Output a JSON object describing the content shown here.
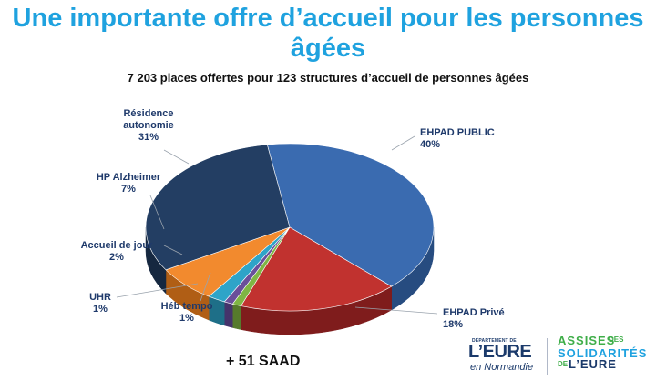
{
  "page": {
    "title": "Une importante offre d’accueil pour les personnes âgées",
    "footer_text": "+ 51 SAAD",
    "logo_left": {
      "small": "DÉPARTEMENT DE",
      "big": "L’EURE",
      "sub": "en Normandie"
    },
    "logo_right": {
      "line1": "ASSISES",
      "des": "DES",
      "line2": "SOLIDARITÉS",
      "de": "DE",
      "line3": "L’EURE"
    }
  },
  "chart_data": {
    "type": "pie",
    "title": "7 203 places offertes pour 123 structures d’accueil de personnes âgées",
    "slices": [
      {
        "name": "EHPAD PUBLIC",
        "value": 40,
        "label": "40%",
        "color": "#3a6bb0",
        "side": "#274c80"
      },
      {
        "name": "EHPAD Privé",
        "value": 18,
        "label": "18%",
        "color": "#c1322f",
        "side": "#7f1c1c"
      },
      {
        "name": "Héb tempo",
        "value": 1,
        "label": "1%",
        "color": "#7fb544",
        "side": "#567a2c"
      },
      {
        "name": "UHR",
        "value": 1,
        "label": "1%",
        "color": "#6a4f9a",
        "side": "#45336b"
      },
      {
        "name": "Accueil de jour",
        "value": 2,
        "label": "2%",
        "color": "#2ea4c8",
        "side": "#1e6f88"
      },
      {
        "name": "HP Alzheimer",
        "value": 7,
        "label": "7%",
        "color": "#f28a2e",
        "side": "#b05e15"
      },
      {
        "name": "Résidence autonomie",
        "value": 31,
        "label": "31%",
        "color": "#233e63",
        "side": "#162840"
      }
    ],
    "label_lines": {
      "EHPAD PUBLIC": [
        "EHPAD PUBLIC"
      ],
      "EHPAD Privé": [
        "EHPAD Privé"
      ],
      "Héb tempo": [
        "Héb tempo"
      ],
      "UHR": [
        "UHR"
      ],
      "Accueil de jour": [
        "Accueil de jour"
      ],
      "HP Alzheimer": [
        "HP Alzheimer"
      ],
      "Résidence autonomie": [
        "Résidence",
        "autonomie"
      ]
    },
    "legend": "none"
  }
}
